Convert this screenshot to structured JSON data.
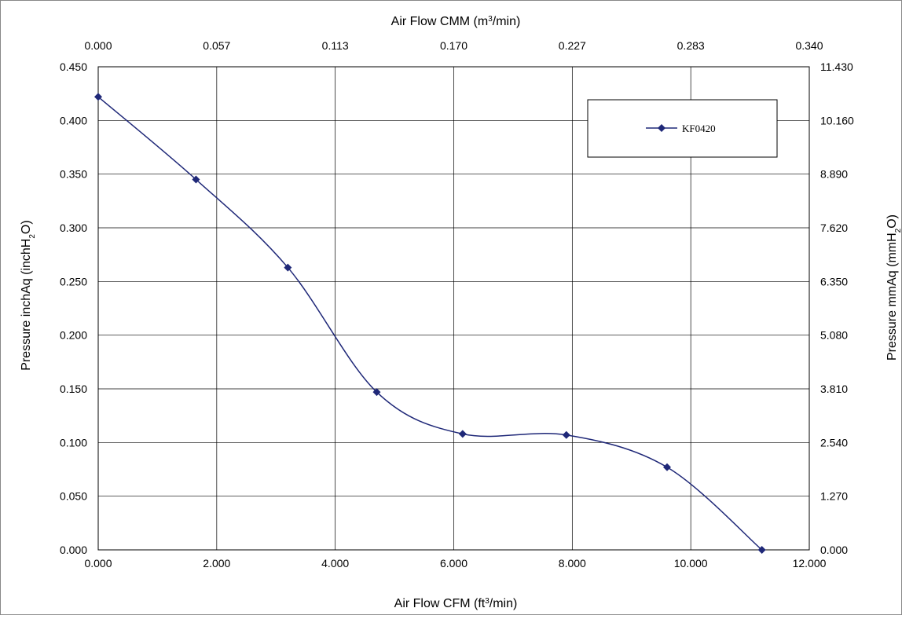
{
  "chart_data": {
    "type": "line",
    "x": [
      0.0,
      1.65,
      3.2,
      4.7,
      6.15,
      7.9,
      9.6,
      11.2
    ],
    "series": [
      {
        "name": "KF0420",
        "values": [
          0.422,
          0.345,
          0.263,
          0.147,
          0.108,
          0.107,
          0.077,
          0.0
        ],
        "color": "#1f2878",
        "marker": "diamond"
      }
    ],
    "xlabel_prefix": "Air Flow CFM (ft",
    "xlabel_sup": "3",
    "xlabel_suffix": "/min)",
    "x2label_prefix": "Air Flow CMM (m",
    "x2label_sup": "3",
    "x2label_suffix": "/min)",
    "ylabel_prefix": "Pressure inchAq (inchH",
    "ylabel_sub": "2",
    "ylabel_suffix": "O)",
    "y2label_prefix": "Pressure mmAq (mmH",
    "y2label_sub": "2",
    "y2label_suffix": "O)",
    "xlim": [
      0,
      12
    ],
    "ylim": [
      0,
      0.45
    ],
    "x_ticks": [
      "0.000",
      "2.000",
      "4.000",
      "6.000",
      "8.000",
      "10.000",
      "12.000"
    ],
    "x2_ticks": [
      "0.000",
      "0.057",
      "0.113",
      "0.170",
      "0.227",
      "0.283",
      "0.340"
    ],
    "y_ticks": [
      "0.000",
      "0.050",
      "0.100",
      "0.150",
      "0.200",
      "0.250",
      "0.300",
      "0.350",
      "0.400",
      "0.450"
    ],
    "y2_ticks": [
      "0.000",
      "1.270",
      "2.540",
      "3.810",
      "5.080",
      "6.350",
      "7.620",
      "8.890",
      "10.160",
      "11.430"
    ],
    "grid": true,
    "legend_position": "top-right"
  }
}
